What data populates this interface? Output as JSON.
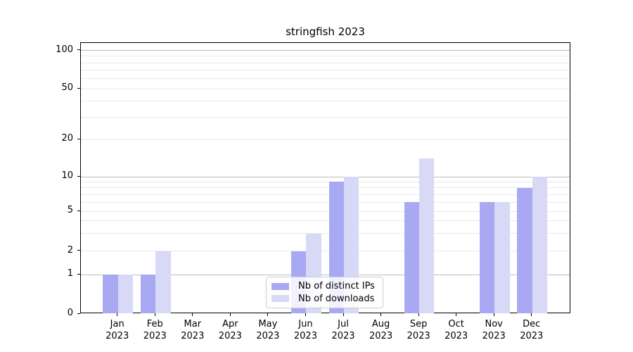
{
  "chart_data": {
    "type": "bar",
    "title": "stringfish 2023",
    "categories": [
      "Jan",
      "Feb",
      "Mar",
      "Apr",
      "May",
      "Jun",
      "Jul",
      "Aug",
      "Sep",
      "Oct",
      "Nov",
      "Dec"
    ],
    "year_label": "2023",
    "series": [
      {
        "name": "Nb of distinct IPs",
        "color": "#a9a9f3",
        "values": [
          1,
          1,
          0,
          0,
          0,
          2,
          9,
          0,
          6,
          0,
          6,
          8
        ]
      },
      {
        "name": "Nb of downloads",
        "color": "#d8d8f7",
        "values": [
          1,
          2,
          0,
          0,
          0,
          3,
          10,
          0,
          14,
          0,
          6,
          10
        ]
      }
    ],
    "yscale": "symlog",
    "ylabel": "",
    "xlabel": "",
    "ytick_labels": [
      "0",
      "1",
      "2",
      "5",
      "10",
      "20",
      "50",
      "100"
    ],
    "ytick_values": [
      0,
      1,
      2,
      5,
      10,
      20,
      50,
      100
    ],
    "ylim": [
      0,
      100
    ],
    "grid": "on",
    "legend_position": "lower-center"
  },
  "colors": {
    "major_grid": "#bdbdbd",
    "minor_grid": "#e9e9e9",
    "spine": "#000000",
    "bar_distinct_ips": "#a9a9f3",
    "bar_downloads": "#d8d8f7"
  }
}
